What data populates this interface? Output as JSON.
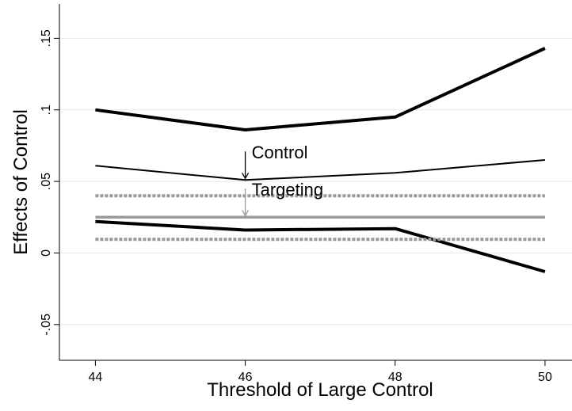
{
  "chart_data": {
    "type": "line",
    "x_label": "Threshold of Large Control",
    "y_label": "Effects of Control",
    "x": [
      44,
      46,
      48,
      50
    ],
    "series": [
      {
        "color": "#000000",
        "values": [
          0.1,
          0.086,
          0.095,
          0.143
        ]
      },
      {
        "name": "Control",
        "color": "#000000",
        "values": [
          0.061,
          0.051,
          0.056,
          0.065
        ]
      },
      {
        "color": "#000000",
        "values": [
          0.022,
          0.016,
          0.017,
          -0.013
        ]
      },
      {
        "color": "#999999",
        "values": [
          0.04,
          0.04,
          0.04,
          0.04
        ]
      },
      {
        "name": "Targeting",
        "color": "#999999",
        "values": [
          0.025,
          0.025,
          0.025,
          0.025
        ]
      },
      {
        "color": "#999999",
        "values": [
          0.0095,
          0.0095,
          0.0095,
          0.0095
        ]
      }
    ],
    "xlim": [
      43.52,
      50.36
    ],
    "xticks": [
      44,
      46,
      48,
      50
    ],
    "ylim": [
      -0.075,
      0.174
    ],
    "yticks": [
      {
        "value": 0.15,
        "label": ".15"
      },
      {
        "value": 0.1,
        "label": ".1"
      },
      {
        "value": 0.05,
        "label": ".05"
      },
      0,
      {
        "value": -0.05,
        "label": "-.05"
      }
    ],
    "grid": true
  }
}
